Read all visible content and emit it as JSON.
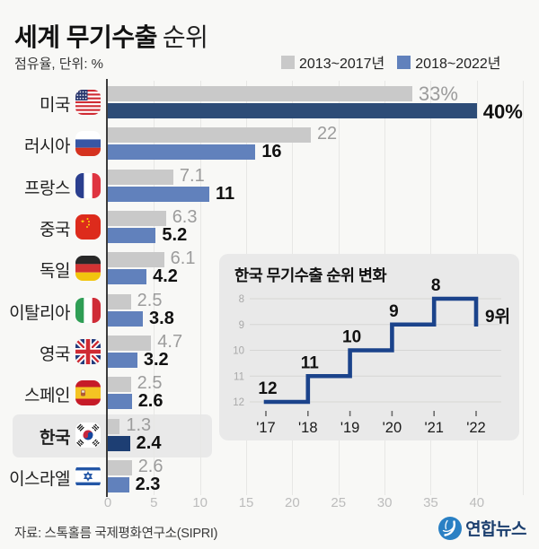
{
  "header": {
    "title_bold": "세계 무기수출",
    "title_light": "순위",
    "subtitle": "점유율, 단위: %"
  },
  "legend": {
    "items": [
      {
        "label": "2013~2017년",
        "color": "#c9c9c9"
      },
      {
        "label": "2018~2022년",
        "color": "#6181bc"
      }
    ]
  },
  "chart_data": [
    {
      "type": "bar",
      "orientation": "horizontal",
      "title": "세계 무기수출 순위",
      "unit": "점유율 %",
      "categories": [
        "미국",
        "러시아",
        "프랑스",
        "중국",
        "독일",
        "이탈리아",
        "영국",
        "스페인",
        "한국",
        "이스라엘"
      ],
      "flags": [
        "usa",
        "russia",
        "france",
        "china",
        "germany",
        "italy",
        "uk",
        "spain",
        "south-korea",
        "israel"
      ],
      "series": [
        {
          "name": "2013~2017년",
          "color": "#c9c9c9",
          "values": [
            33,
            22,
            7.1,
            6.3,
            6.1,
            2.5,
            4.7,
            2.5,
            1.3,
            2.6
          ],
          "labels": [
            "33%",
            "22",
            "7.1",
            "6.3",
            "6.1",
            "2.5",
            "4.7",
            "2.5",
            "1.3",
            "2.6"
          ]
        },
        {
          "name": "2018~2022년",
          "color": "#6181bc",
          "values": [
            40,
            16,
            11,
            5.2,
            4.2,
            3.8,
            3.2,
            2.6,
            2.4,
            2.3
          ],
          "labels": [
            "40%",
            "16",
            "11",
            "5.2",
            "4.2",
            "3.8",
            "3.2",
            "2.6",
            "2.4",
            "2.3"
          ]
        }
      ],
      "emphasis": {
        "0": "#2d4c77",
        "8": "#1d3e73"
      },
      "highlighted_category": "한국",
      "x_ticks": [
        0,
        5,
        10,
        15,
        20,
        25,
        30,
        35,
        40
      ],
      "xlim": [
        0,
        45
      ],
      "grid": true,
      "legend_position": "top-right"
    },
    {
      "type": "line",
      "style": "step",
      "title": "한국 무기수출 순위 변화",
      "x": [
        "'17",
        "'18",
        "'19",
        "'20",
        "'21",
        "'22"
      ],
      "values": [
        12,
        11,
        10,
        9,
        8,
        9
      ],
      "point_labels": [
        "12",
        "11",
        "10",
        "9",
        "8",
        "9위"
      ],
      "y_ticks": [
        8,
        9,
        10,
        11,
        12
      ],
      "y_inverted": true,
      "ylim": [
        8,
        12
      ],
      "line_color": "#1b438b",
      "grid": true
    }
  ],
  "footer": {
    "source": "자료: 스톡홀름 국제평화연구소(SIPRI)",
    "logo_text": "연합뉴스"
  },
  "colors": {
    "background": "#f8f8f6",
    "bar_gray": "#c9c9c9",
    "bar_blue": "#6181bc",
    "bar_navy_usa": "#2d4c77",
    "bar_navy_korea": "#1d3e73",
    "highlight_band": "#e9e9e9",
    "inset_panel": "#e9e9e9",
    "inset_line": "#1b438b",
    "logo_blue": "#2a80c4",
    "logo_navy": "#1c3f6f"
  }
}
